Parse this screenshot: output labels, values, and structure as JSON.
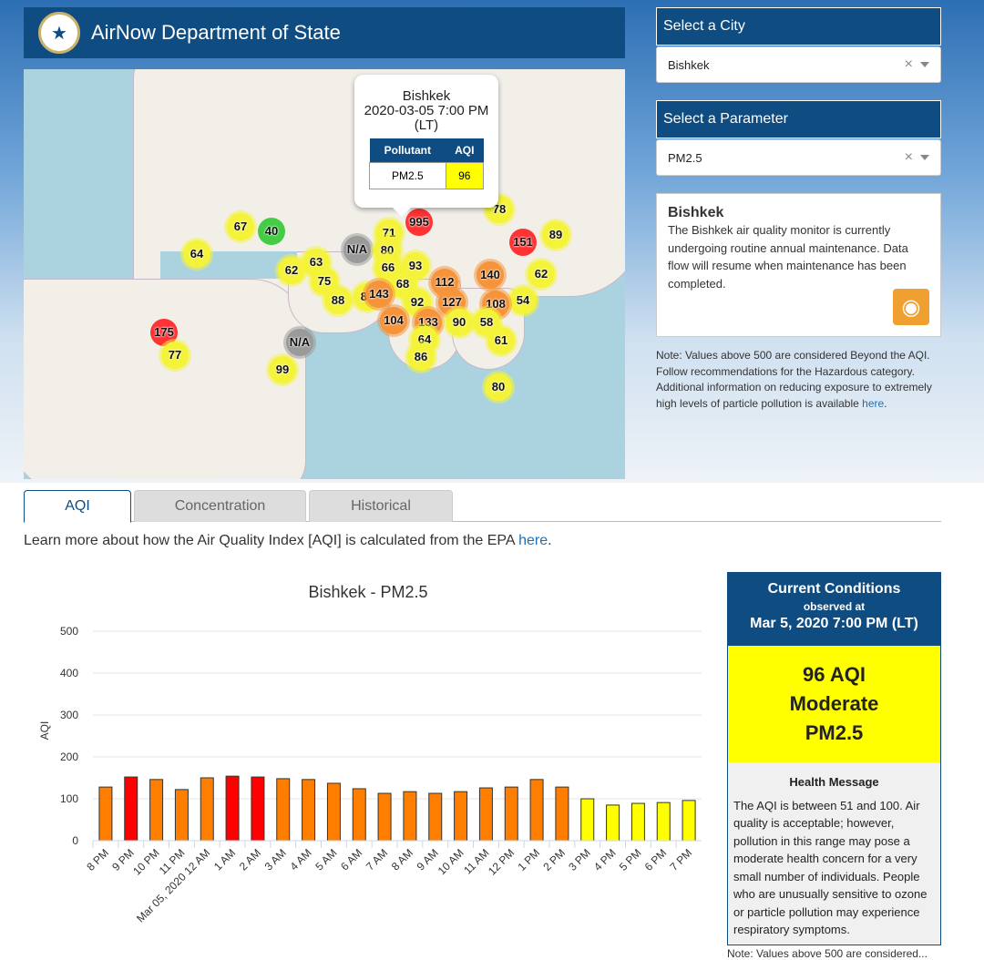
{
  "header": {
    "title": "AirNow Department of State",
    "seal_icon": "state-department-seal"
  },
  "map": {
    "popup": {
      "city": "Bishkek",
      "datetime": "2020-03-05 7:00 PM (LT)",
      "col_pollutant": "Pollutant",
      "col_aqi": "AQI",
      "pollutant": "PM2.5",
      "aqi": "96"
    },
    "markers": [
      "67",
      "40",
      "64",
      "62",
      "63",
      "75",
      "88",
      "89",
      "175",
      "77",
      "N/A",
      "99",
      "N/A",
      "71",
      "995",
      "80",
      "66",
      "93",
      "68",
      "92",
      "143",
      "104",
      "133",
      "64",
      "86",
      "112",
      "127",
      "140",
      "78",
      "151",
      "89",
      "62",
      "54",
      "108",
      "58",
      "90",
      "61",
      "80"
    ]
  },
  "city_select": {
    "label": "Select a City",
    "value": "Bishkek"
  },
  "param_select": {
    "label": "Select a Parameter",
    "value": "PM2.5"
  },
  "info": {
    "title": "Bishkek",
    "text": "The Bishkek air quality monitor is currently undergoing routine annual maintenance. Data flow will resume when maintenance has been completed.",
    "rss_icon": "rss-feed-icon"
  },
  "note": {
    "text": "Note: Values above 500 are considered Beyond the AQI. Follow recommendations for the Hazardous category. Additional information on reducing exposure to extremely high levels of particle pollution is available ",
    "link": "here"
  },
  "tabs": [
    "AQI",
    "Concentration",
    "Historical"
  ],
  "learn": {
    "text": "Learn more about how the Air Quality Index [AQI] is calculated from the EPA ",
    "link": "here",
    "end": "."
  },
  "colors": {
    "moderate": "#ffff00",
    "usg": "#ff7e00",
    "unhealthy": "#ff0000",
    "brand": "#0f4c81"
  },
  "chart_data": {
    "type": "bar",
    "title": "Bishkek - PM2.5",
    "ylabel": "AQI",
    "xlabel": "",
    "ylim": [
      0,
      500
    ],
    "yticks": [
      0,
      100,
      200,
      300,
      400,
      500
    ],
    "grid": true,
    "categories": [
      "8 PM",
      "9 PM",
      "10 PM",
      "11 PM",
      "Mar 05, 2020 12 AM",
      "1 AM",
      "2 AM",
      "3 AM",
      "4 AM",
      "5 AM",
      "6 AM",
      "7 AM",
      "8 AM",
      "9 AM",
      "10 AM",
      "11 AM",
      "12 PM",
      "1 PM",
      "2 PM",
      "3 PM",
      "4 PM",
      "5 PM",
      "6 PM",
      "7 PM"
    ],
    "values": [
      128,
      152,
      146,
      122,
      150,
      154,
      152,
      148,
      146,
      137,
      124,
      113,
      117,
      113,
      117,
      126,
      128,
      146,
      128,
      100,
      85,
      89,
      91,
      96
    ]
  },
  "current": {
    "title": "Current Conditions",
    "observed": "observed at",
    "datetime": "Mar 5, 2020 7:00 PM (LT)",
    "aqi": "96 AQI",
    "category": "Moderate",
    "pollutant": "PM2.5",
    "health_title": "Health Message",
    "health_text": "The AQI is between 51 and 100. Air quality is acceptable; however, pollution in this range may pose a moderate health concern for a very small number of individuals. People who are unusually sensitive to ozone or particle pollution may experience respiratory symptoms.",
    "note": "Note: Values above 500 are considered..."
  }
}
